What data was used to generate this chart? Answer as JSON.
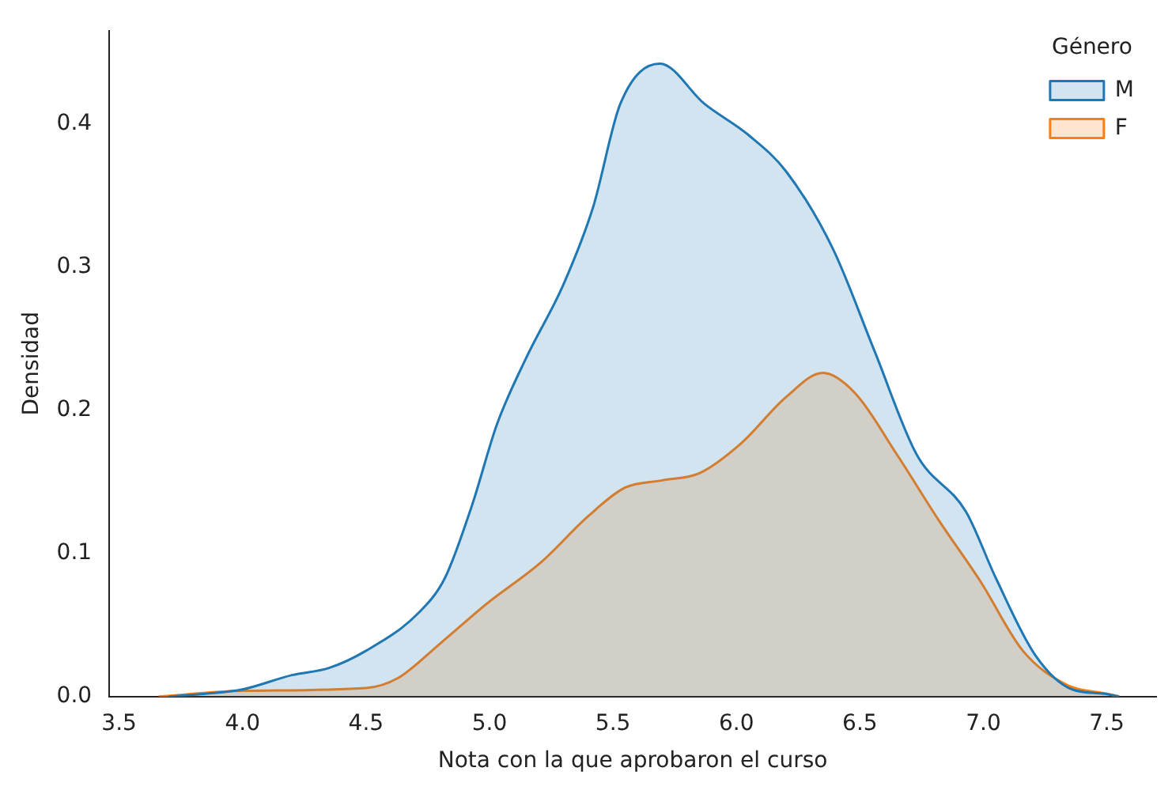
{
  "chart_data": {
    "type": "area",
    "xlabel": "Nota con la que aprobaron el curso",
    "ylabel": "Densidad",
    "legend_title": "Género",
    "legend": "top right",
    "grid": false,
    "xlim": [
      3.46,
      7.7
    ],
    "xticks": [
      {
        "value": 3.5,
        "label": "3.5"
      },
      {
        "value": 4,
        "label": "4.0"
      },
      {
        "value": 4.5,
        "label": "4.5"
      },
      {
        "value": 5,
        "label": "5.0"
      },
      {
        "value": 5.5,
        "label": "5.5"
      },
      {
        "value": 6,
        "label": "6.0"
      },
      {
        "value": 6.5,
        "label": "6.5"
      },
      {
        "value": 7,
        "label": "7.0"
      },
      {
        "value": 7.5,
        "label": "7.5"
      }
    ],
    "ylim": [
      0,
      0.465
    ],
    "yticks": [
      {
        "value": 0,
        "label": "0.0"
      },
      {
        "value": 0.1,
        "label": "0.1"
      },
      {
        "value": 0.2,
        "label": "0.2"
      },
      {
        "value": 0.3,
        "label": "0.3"
      },
      {
        "value": 0.4,
        "label": "0.4"
      }
    ],
    "series": [
      {
        "name": "M",
        "color": "#1f77b4",
        "x": [
          3.7,
          3.85,
          4.0,
          4.2,
          4.35,
          4.5,
          4.71,
          4.82,
          4.93,
          5.03,
          5.15,
          5.3,
          5.42,
          5.53,
          5.69,
          5.87,
          6.05,
          6.2,
          6.39,
          6.56,
          6.73,
          6.93,
          7.05,
          7.21,
          7.36,
          7.49,
          7.55
        ],
        "values": [
          0,
          0.002,
          0.005,
          0.015,
          0.02,
          0.032,
          0.058,
          0.083,
          0.134,
          0.19,
          0.237,
          0.288,
          0.342,
          0.414,
          0.442,
          0.414,
          0.392,
          0.367,
          0.313,
          0.241,
          0.169,
          0.129,
          0.083,
          0.029,
          0.005,
          0.002,
          0
        ]
      },
      {
        "name": "F",
        "color": "#ff7f0e",
        "x": [
          3.66,
          4.0,
          4.5,
          4.63,
          4.8,
          4.99,
          5.21,
          5.4,
          5.55,
          5.7,
          5.85,
          6.02,
          6.2,
          6.35,
          6.48,
          6.65,
          6.82,
          6.99,
          7.16,
          7.34,
          7.5,
          7.55
        ],
        "values": [
          0,
          0.004,
          0.006,
          0.013,
          0.037,
          0.065,
          0.094,
          0.126,
          0.146,
          0.151,
          0.156,
          0.177,
          0.209,
          0.226,
          0.212,
          0.169,
          0.123,
          0.08,
          0.032,
          0.008,
          0.002,
          0
        ]
      }
    ]
  }
}
